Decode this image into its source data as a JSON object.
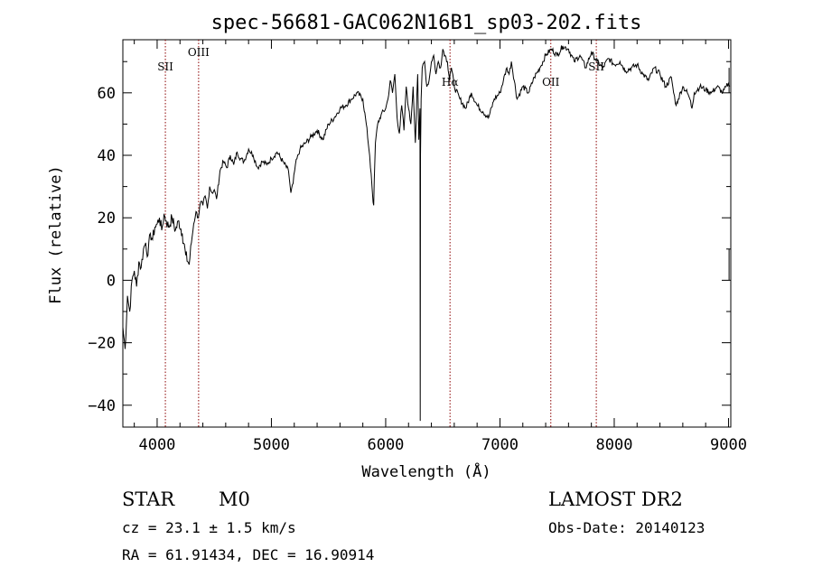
{
  "chart_data": {
    "type": "line",
    "title": "spec-56681-GAC062N16B1_sp03-202.fits",
    "xlabel": "Wavelength (Å)",
    "ylabel": "Flux (relative)",
    "xlim": [
      3700,
      9020
    ],
    "ylim": [
      -47,
      77
    ],
    "xticks": [
      4000,
      5000,
      6000,
      7000,
      8000,
      9000
    ],
    "yticks": [
      -40,
      -20,
      0,
      20,
      40,
      60
    ],
    "series": [
      {
        "x": [
          3700,
          3720,
          3740,
          3760,
          3780,
          3800,
          3820,
          3840,
          3860,
          3880,
          3900,
          3920,
          3940,
          3960,
          3980,
          4000,
          4020,
          4040,
          4060,
          4080,
          4100,
          4130,
          4160,
          4190,
          4220,
          4250,
          4280,
          4300,
          4320,
          4340,
          4360,
          4380,
          4400,
          4420,
          4440,
          4460,
          4480,
          4500,
          4520,
          4550,
          4580,
          4610,
          4640,
          4670,
          4700,
          4730,
          4760,
          4800,
          4840,
          4880,
          4920,
          4960,
          5000,
          5050,
          5100,
          5150,
          5170,
          5190,
          5210,
          5250,
          5300,
          5350,
          5400,
          5450,
          5500,
          5550,
          5600,
          5650,
          5700,
          5750,
          5800,
          5830,
          5860,
          5880,
          5890,
          5895,
          5900,
          5910,
          5930,
          5960,
          6000,
          6020,
          6040,
          6060,
          6080,
          6100,
          6120,
          6140,
          6160,
          6180,
          6200,
          6220,
          6240,
          6260,
          6280,
          6290,
          6300,
          6302,
          6305,
          6310,
          6320,
          6340,
          6360,
          6380,
          6400,
          6420,
          6440,
          6460,
          6480,
          6500,
          6520,
          6540,
          6560,
          6563,
          6575,
          6600,
          6650,
          6700,
          6750,
          6800,
          6850,
          6900,
          6950,
          7000,
          7030,
          7060,
          7080,
          7100,
          7150,
          7200,
          7250,
          7300,
          7350,
          7400,
          7450,
          7500,
          7550,
          7600,
          7650,
          7700,
          7750,
          7800,
          7850,
          7900,
          7950,
          8000,
          8050,
          8100,
          8150,
          8200,
          8250,
          8300,
          8350,
          8400,
          8450,
          8500,
          8520,
          8542,
          8560,
          8600,
          8640,
          8662,
          8680,
          8700,
          8750,
          8800,
          8850,
          8900,
          8950,
          8980,
          9000,
          9010
        ],
        "y": [
          -15,
          -22,
          -5,
          -10,
          0,
          3,
          -2,
          6,
          4,
          10,
          12,
          8,
          15,
          13,
          17,
          18,
          20,
          16,
          21,
          19,
          17,
          20,
          16,
          19,
          15,
          8,
          5,
          12,
          18,
          22,
          20,
          25,
          24,
          27,
          23,
          30,
          28,
          29,
          26,
          35,
          38,
          36,
          40,
          37,
          41,
          39,
          38,
          42,
          40,
          36,
          38,
          37,
          39,
          41,
          38,
          35,
          28,
          31,
          37,
          42,
          44,
          46,
          48,
          45,
          50,
          52,
          55,
          56,
          58,
          60,
          58,
          50,
          40,
          30,
          25,
          24,
          32,
          44,
          50,
          53,
          55,
          58,
          64,
          60,
          66,
          52,
          47,
          56,
          48,
          62,
          55,
          50,
          62,
          44,
          66,
          45,
          55,
          -45,
          40,
          58,
          68,
          70,
          62,
          64,
          70,
          72,
          66,
          70,
          68,
          74,
          72,
          70,
          64,
          66,
          68,
          62,
          58,
          55,
          60,
          56,
          54,
          52,
          58,
          60,
          64,
          68,
          66,
          70,
          58,
          62,
          60,
          65,
          68,
          72,
          74,
          72,
          75,
          74,
          70,
          72,
          68,
          73,
          70,
          68,
          71,
          69,
          70,
          67,
          68,
          69,
          66,
          64,
          68,
          66,
          62,
          65,
          60,
          56,
          58,
          62,
          60,
          58,
          55,
          60,
          62,
          61,
          60,
          62,
          60,
          62,
          63,
          62
        ]
      }
    ],
    "lines": [
      {
        "label": "SII",
        "x": 4072
      },
      {
        "label": "OIII",
        "x": 4363
      },
      {
        "label": "Hα",
        "x": 6563
      },
      {
        "label": "OII",
        "x": 7445
      },
      {
        "label": "SII",
        "x": 7843
      }
    ]
  },
  "info": {
    "class": "STAR",
    "subclass": "M0",
    "survey": "LAMOST DR2",
    "cz": "cz = 23.1 ± 1.5 km/s",
    "obs_date": "Obs-Date: 20140123",
    "coords": "RA =  61.91434, DEC =  16.90914"
  }
}
